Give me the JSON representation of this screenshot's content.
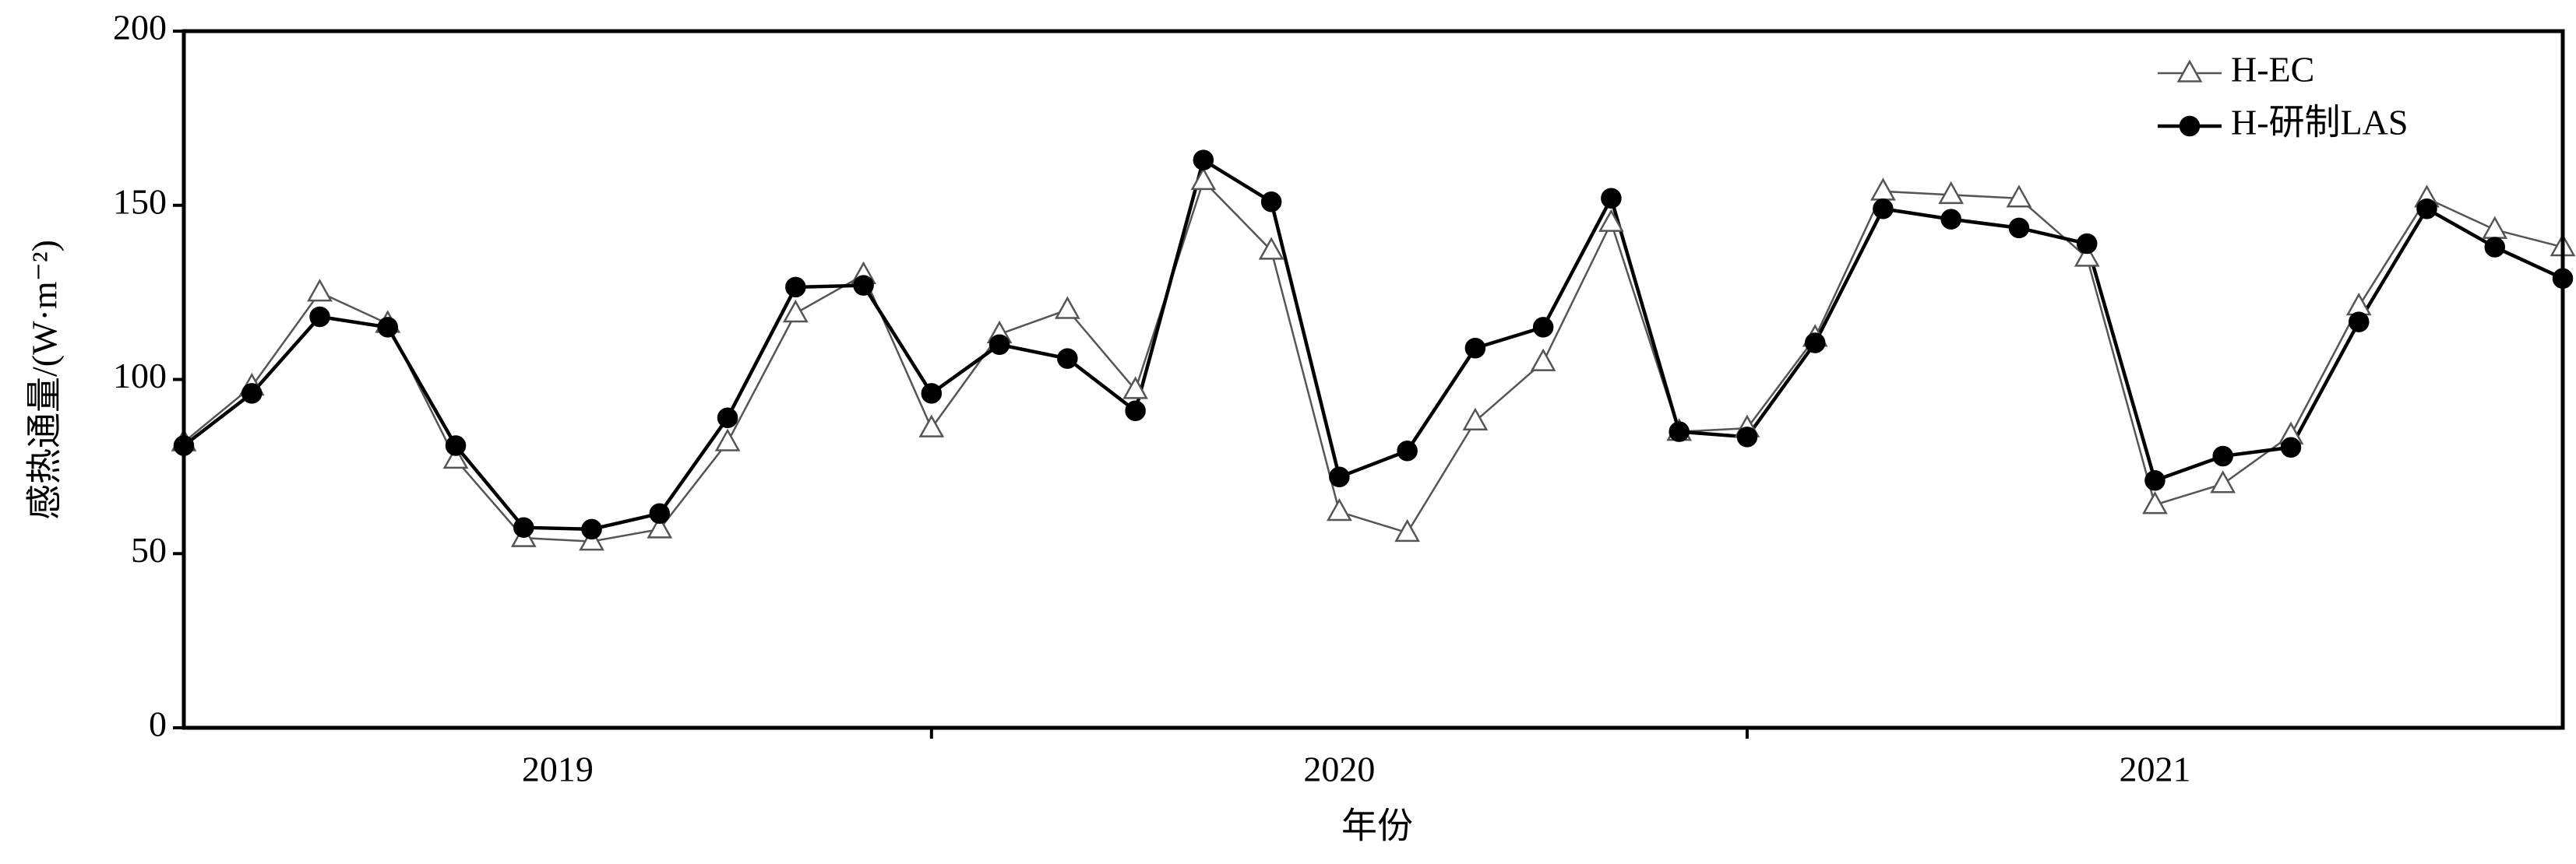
{
  "chart_data": {
    "type": "line",
    "ylabel": "感热通量/(W·m⁻²)",
    "xlabel": "年份",
    "x": [
      0,
      1,
      2,
      3,
      4,
      5,
      6,
      7,
      8,
      9,
      10,
      11,
      12,
      13,
      14,
      15,
      16,
      17,
      18,
      19,
      20,
      21,
      22,
      23,
      24,
      25,
      26,
      27,
      28,
      29,
      30,
      31,
      32,
      33,
      34,
      35
    ],
    "xlim": [
      0,
      35
    ],
    "xticks": [
      11,
      23
    ],
    "x_groups": [
      "2019",
      "2020",
      "2021"
    ],
    "ylim": [
      0,
      200
    ],
    "yticks": [
      0,
      50,
      100,
      150,
      200
    ],
    "grid": false,
    "legend": "upper right",
    "series": [
      {
        "name": "H-EC",
        "color": "#555555",
        "marker": "triangle",
        "values": [
          82,
          98,
          125,
          116,
          77,
          54.5,
          53.5,
          57,
          82,
          119,
          130,
          86,
          113,
          120,
          97,
          157,
          137,
          62,
          56,
          88,
          105,
          145,
          85,
          86,
          112,
          154,
          153,
          152,
          135,
          64,
          70,
          84,
          121,
          152,
          143,
          138
        ]
      },
      {
        "name": "H-研制LAS",
        "color": "#000000",
        "marker": "circle",
        "values": [
          81,
          96,
          118,
          115,
          81,
          57.5,
          57,
          61.5,
          89,
          126.5,
          127,
          96,
          110,
          106,
          91,
          163,
          151,
          72,
          79.5,
          109,
          115,
          152,
          85,
          83.5,
          110.5,
          149,
          146,
          143.5,
          139,
          71,
          78,
          80.5,
          116.5,
          149,
          138,
          129
        ]
      }
    ]
  }
}
